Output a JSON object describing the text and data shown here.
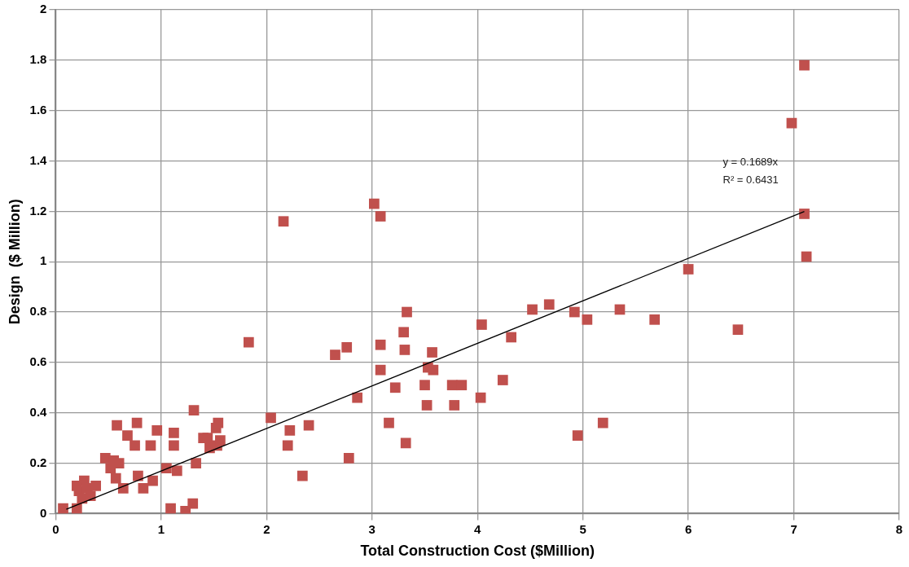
{
  "chart_data": {
    "type": "scatter",
    "xlabel": "Total Construction Cost ($Million)",
    "ylabel": "Design  ($ Million)",
    "xlim": [
      0,
      8
    ],
    "xticks": [
      0,
      1,
      2,
      3,
      4,
      5,
      6,
      7,
      8
    ],
    "ylim": [
      0,
      2
    ],
    "yticks": [
      0,
      0.2,
      0.4,
      0.6,
      0.8,
      1,
      1.2,
      1.4,
      1.6,
      1.8,
      2
    ],
    "grid": true,
    "legend": false,
    "marker": "square",
    "series": [
      {
        "color": "#c0504d",
        "x": [
          0.07,
          0.2,
          0.2,
          0.22,
          0.27,
          0.25,
          0.3,
          0.33,
          0.38,
          0.47,
          0.52,
          0.55,
          0.57,
          0.58,
          0.6,
          0.64,
          0.68,
          0.75,
          0.77,
          0.78,
          0.83,
          0.9,
          0.92,
          0.96,
          1.05,
          1.09,
          1.12,
          1.12,
          1.15,
          1.23,
          1.3,
          1.31,
          1.33,
          1.4,
          1.44,
          1.46,
          1.52,
          1.54,
          1.53,
          1.56,
          1.83,
          2.04,
          2.16,
          2.2,
          2.22,
          2.34,
          2.4,
          2.65,
          2.76,
          2.78,
          2.86,
          3.02,
          3.08,
          3.08,
          3.08,
          3.16,
          3.22,
          3.3,
          3.31,
          3.33,
          3.32,
          3.5,
          3.52,
          3.53,
          3.57,
          3.58,
          3.76,
          3.78,
          3.85,
          4.03,
          4.04,
          4.24,
          4.32,
          4.52,
          4.68,
          4.92,
          4.95,
          5.04,
          5.19,
          5.35,
          5.68,
          6.0,
          6.47,
          6.98,
          7.1,
          7.1,
          7.12
        ],
        "values": [
          0.02,
          0.02,
          0.11,
          0.09,
          0.13,
          0.06,
          0.1,
          0.07,
          0.11,
          0.22,
          0.18,
          0.21,
          0.14,
          0.35,
          0.2,
          0.1,
          0.31,
          0.27,
          0.36,
          0.15,
          0.1,
          0.27,
          0.13,
          0.33,
          0.18,
          0.02,
          0.32,
          0.27,
          0.17,
          0.01,
          0.04,
          0.41,
          0.2,
          0.3,
          0.3,
          0.26,
          0.34,
          0.36,
          0.27,
          0.29,
          0.68,
          0.38,
          1.16,
          0.27,
          0.33,
          0.15,
          0.35,
          0.63,
          0.66,
          0.22,
          0.46,
          1.23,
          1.18,
          0.67,
          0.57,
          0.36,
          0.5,
          0.72,
          0.65,
          0.8,
          0.28,
          0.51,
          0.43,
          0.58,
          0.64,
          0.57,
          0.51,
          0.43,
          0.51,
          0.46,
          0.75,
          0.53,
          0.7,
          0.81,
          0.83,
          0.8,
          0.31,
          0.77,
          0.36,
          0.81,
          0.77,
          0.97,
          0.73,
          1.55,
          1.78,
          1.19,
          1.02
        ]
      },
      {
        "type": "line",
        "color": "#000000",
        "marker": "none",
        "line_style": "solid",
        "x": [
          0.1,
          7.1
        ],
        "values": [
          0.017,
          1.199
        ]
      }
    ],
    "annotations": [
      "y = 0.1689x",
      "R² = 0.6431"
    ]
  }
}
